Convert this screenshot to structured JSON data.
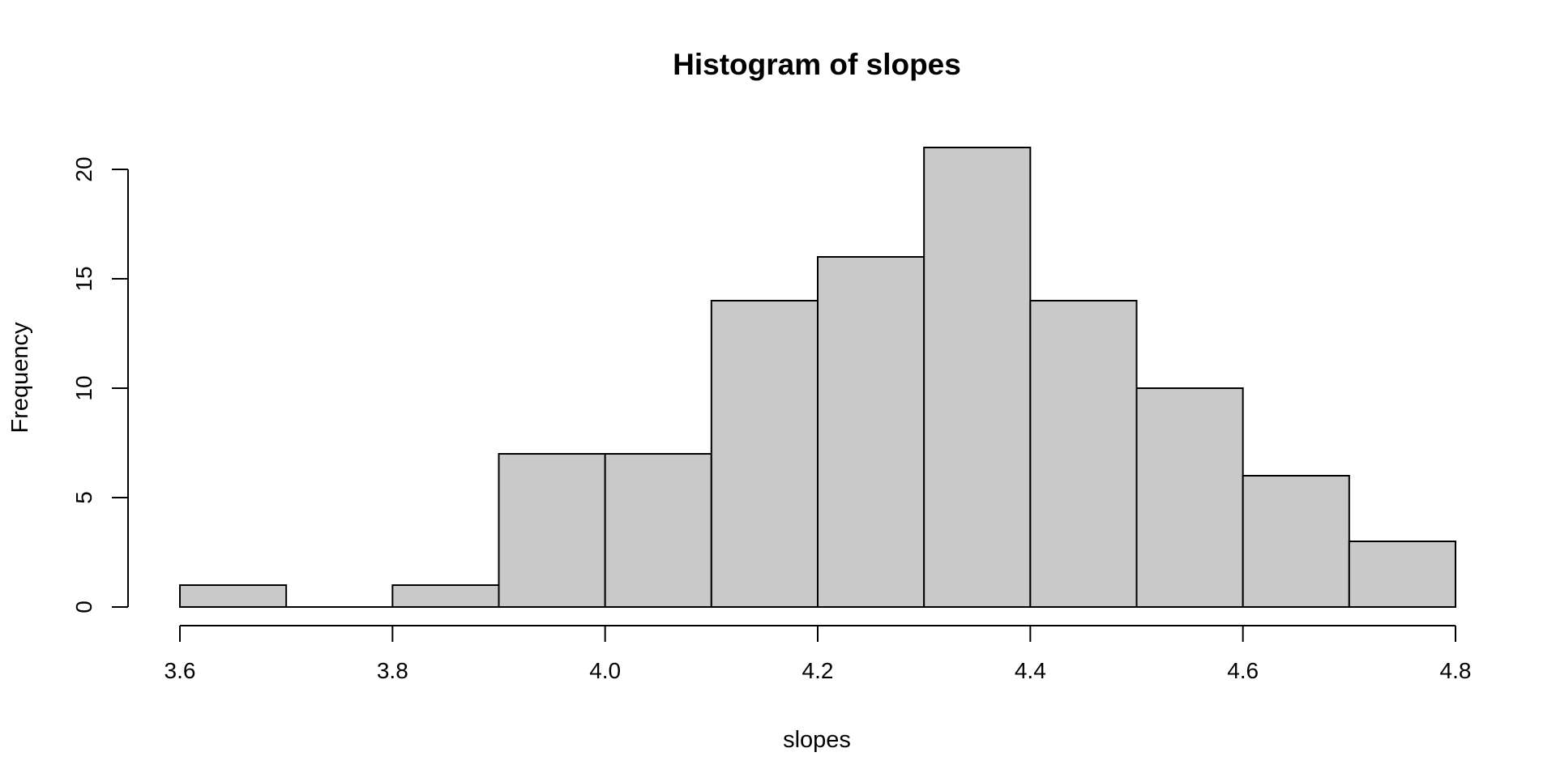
{
  "chart_data": {
    "type": "bar",
    "title": "Histogram of slopes",
    "xlabel": "slopes",
    "ylabel": "Frequency",
    "bins": [
      {
        "start": 3.6,
        "end": 3.7,
        "count": 1
      },
      {
        "start": 3.7,
        "end": 3.8,
        "count": 0
      },
      {
        "start": 3.8,
        "end": 3.9,
        "count": 1
      },
      {
        "start": 3.9,
        "end": 4.0,
        "count": 7
      },
      {
        "start": 4.0,
        "end": 4.1,
        "count": 7
      },
      {
        "start": 4.1,
        "end": 4.2,
        "count": 14
      },
      {
        "start": 4.2,
        "end": 4.3,
        "count": 16
      },
      {
        "start": 4.3,
        "end": 4.4,
        "count": 21
      },
      {
        "start": 4.4,
        "end": 4.5,
        "count": 14
      },
      {
        "start": 4.5,
        "end": 4.6,
        "count": 10
      },
      {
        "start": 4.6,
        "end": 4.7,
        "count": 6
      },
      {
        "start": 4.7,
        "end": 4.8,
        "count": 3
      }
    ],
    "xlim": [
      3.6,
      4.8
    ],
    "ylim": [
      0,
      20
    ],
    "x_ticks": [
      3.6,
      3.8,
      4.0,
      4.2,
      4.4,
      4.6,
      4.8
    ],
    "x_tick_labels": [
      "3.6",
      "3.8",
      "4.0",
      "4.2",
      "4.4",
      "4.6",
      "4.8"
    ],
    "y_ticks": [
      0,
      5,
      10,
      15,
      20
    ],
    "y_tick_labels": [
      "0",
      "5",
      "10",
      "15",
      "20"
    ],
    "grid": false,
    "bar_fill": "#c9c9c9",
    "bar_stroke": "#000000"
  }
}
